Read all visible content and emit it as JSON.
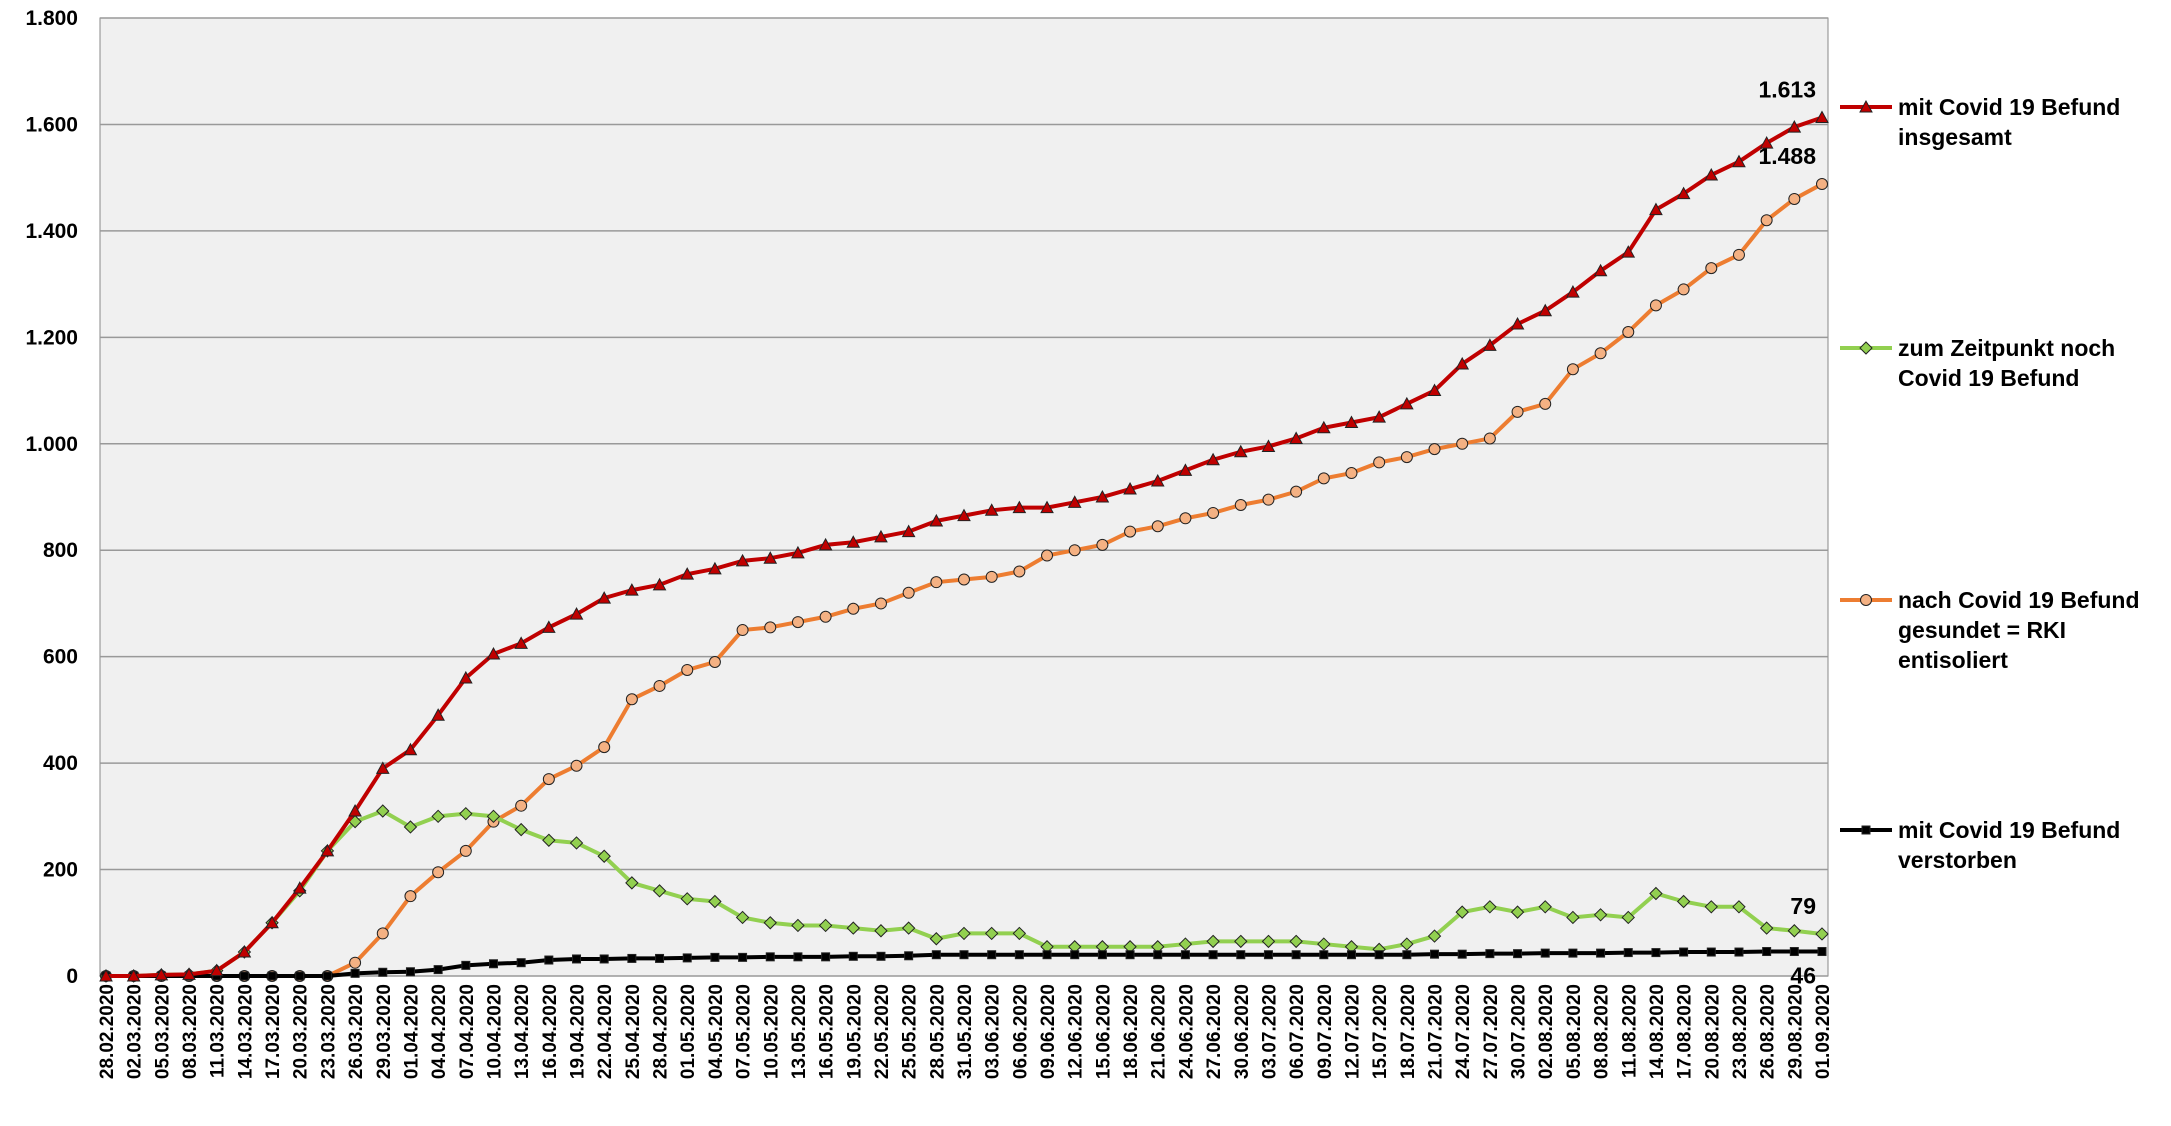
{
  "chart_data": {
    "type": "line",
    "categories": [
      "28.02.2020",
      "02.03.2020",
      "05.03.2020",
      "08.03.2020",
      "11.03.2020",
      "14.03.2020",
      "17.03.2020",
      "20.03.2020",
      "23.03.2020",
      "26.03.2020",
      "29.03.2020",
      "01.04.2020",
      "04.04.2020",
      "07.04.2020",
      "10.04.2020",
      "13.04.2020",
      "16.04.2020",
      "19.04.2020",
      "22.04.2020",
      "25.04.2020",
      "28.04.2020",
      "01.05.2020",
      "04.05.2020",
      "07.05.2020",
      "10.05.2020",
      "13.05.2020",
      "16.05.2020",
      "19.05.2020",
      "22.05.2020",
      "25.05.2020",
      "28.05.2020",
      "31.05.2020",
      "03.06.2020",
      "06.06.2020",
      "09.06.2020",
      "12.06.2020",
      "15.06.2020",
      "18.06.2020",
      "21.06.2020",
      "24.06.2020",
      "27.06.2020",
      "30.06.2020",
      "03.07.2020",
      "06.07.2020",
      "09.07.2020",
      "12.07.2020",
      "15.07.2020",
      "18.07.2020",
      "21.07.2020",
      "24.07.2020",
      "27.07.2020",
      "30.07.2020",
      "02.08.2020",
      "05.08.2020",
      "08.08.2020",
      "11.08.2020",
      "14.08.2020",
      "17.08.2020",
      "20.08.2020",
      "23.08.2020",
      "26.08.2020",
      "29.08.2020",
      "01.09.2020"
    ],
    "series": [
      {
        "name": "mit Covid 19 Befund insgesamt",
        "color": "#c00000",
        "marker": "triangle",
        "marker_fill": "#c00000",
        "label_position": "above",
        "values": [
          0,
          0,
          2,
          3,
          10,
          45,
          100,
          165,
          235,
          310,
          390,
          425,
          490,
          560,
          605,
          625,
          655,
          680,
          710,
          725,
          735,
          755,
          765,
          780,
          785,
          795,
          810,
          815,
          825,
          835,
          855,
          865,
          875,
          880,
          880,
          890,
          900,
          915,
          930,
          950,
          970,
          985,
          995,
          1010,
          1030,
          1040,
          1050,
          1075,
          1100,
          1150,
          1185,
          1225,
          1250,
          1285,
          1325,
          1360,
          1440,
          1470,
          1505,
          1530,
          1565,
          1595,
          1613
        ],
        "value_labels": [
          null,
          null,
          null,
          null,
          null,
          null,
          null,
          null,
          null,
          null,
          null,
          null,
          null,
          null,
          null,
          null,
          null,
          null,
          null,
          null,
          null,
          null,
          null,
          null,
          null,
          null,
          null,
          null,
          null,
          null,
          null,
          null,
          null,
          null,
          null,
          null,
          null,
          null,
          null,
          null,
          null,
          null,
          null,
          null,
          null,
          null,
          null,
          null,
          null,
          null,
          null,
          null,
          null,
          null,
          null,
          null,
          null,
          null,
          null,
          null,
          null,
          null,
          "1.613"
        ]
      },
      {
        "name": "zum Zeitpunkt noch Covid 19 Befund",
        "color": "#92d050",
        "marker": "diamond",
        "marker_fill": "#92d050",
        "label_position": "above",
        "values": [
          0,
          0,
          2,
          3,
          10,
          45,
          100,
          160,
          235,
          290,
          310,
          280,
          300,
          305,
          300,
          275,
          255,
          250,
          225,
          175,
          160,
          145,
          140,
          110,
          100,
          95,
          95,
          90,
          85,
          90,
          70,
          80,
          80,
          80,
          55,
          55,
          55,
          55,
          55,
          60,
          65,
          65,
          65,
          65,
          60,
          55,
          50,
          60,
          75,
          120,
          130,
          120,
          130,
          110,
          115,
          110,
          155,
          140,
          130,
          130,
          90,
          85,
          79
        ],
        "value_labels": [
          null,
          null,
          null,
          null,
          null,
          null,
          null,
          null,
          null,
          null,
          null,
          null,
          null,
          null,
          null,
          null,
          null,
          null,
          null,
          null,
          null,
          null,
          null,
          null,
          null,
          null,
          null,
          null,
          null,
          null,
          null,
          null,
          null,
          null,
          null,
          null,
          null,
          null,
          null,
          null,
          null,
          null,
          null,
          null,
          null,
          null,
          null,
          null,
          null,
          null,
          null,
          null,
          null,
          null,
          null,
          null,
          null,
          null,
          null,
          null,
          null,
          null,
          "79"
        ]
      },
      {
        "name": "nach Covid 19 Befund gesundet = RKI entisoliert",
        "color": "#ed7d31",
        "marker": "circle",
        "marker_fill": "#f4b183",
        "label_position": "above",
        "values": [
          0,
          0,
          0,
          0,
          0,
          0,
          0,
          0,
          0,
          25,
          80,
          150,
          195,
          235,
          290,
          320,
          370,
          395,
          430,
          520,
          545,
          575,
          590,
          650,
          655,
          665,
          675,
          690,
          700,
          720,
          740,
          745,
          750,
          760,
          790,
          800,
          810,
          835,
          845,
          860,
          870,
          885,
          895,
          910,
          935,
          945,
          965,
          975,
          990,
          1000,
          1010,
          1060,
          1075,
          1140,
          1170,
          1210,
          1260,
          1290,
          1330,
          1355,
          1420,
          1460,
          1488
        ],
        "value_labels": [
          null,
          null,
          null,
          null,
          null,
          null,
          null,
          null,
          null,
          null,
          null,
          null,
          null,
          null,
          null,
          null,
          null,
          null,
          null,
          null,
          null,
          null,
          null,
          null,
          null,
          null,
          null,
          null,
          null,
          null,
          null,
          null,
          null,
          null,
          null,
          null,
          null,
          null,
          null,
          null,
          null,
          null,
          null,
          null,
          null,
          null,
          null,
          null,
          null,
          null,
          null,
          null,
          null,
          null,
          null,
          null,
          null,
          null,
          null,
          null,
          null,
          null,
          "1.488"
        ]
      },
      {
        "name": "mit Covid 19 Befund verstorben",
        "color": "#000000",
        "marker": "square",
        "marker_fill": "#000000",
        "label_position": "below",
        "values": [
          0,
          0,
          0,
          0,
          0,
          0,
          0,
          0,
          0,
          5,
          7,
          8,
          12,
          20,
          23,
          25,
          30,
          32,
          32,
          33,
          33,
          34,
          35,
          35,
          36,
          36,
          36,
          37,
          37,
          38,
          40,
          40,
          40,
          40,
          40,
          40,
          40,
          40,
          40,
          40,
          40,
          40,
          40,
          40,
          40,
          40,
          40,
          40,
          41,
          41,
          42,
          42,
          43,
          43,
          43,
          44,
          44,
          45,
          45,
          45,
          46,
          46,
          46
        ],
        "value_labels": [
          null,
          null,
          null,
          null,
          null,
          null,
          null,
          null,
          null,
          null,
          null,
          null,
          null,
          null,
          null,
          null,
          null,
          null,
          null,
          null,
          null,
          null,
          null,
          null,
          null,
          null,
          null,
          null,
          null,
          null,
          null,
          null,
          null,
          null,
          null,
          null,
          null,
          null,
          null,
          null,
          null,
          null,
          null,
          null,
          null,
          null,
          null,
          null,
          null,
          null,
          null,
          null,
          null,
          null,
          null,
          null,
          null,
          null,
          null,
          null,
          null,
          null,
          "46"
        ]
      }
    ],
    "ylim": [
      0,
      1800
    ],
    "yticks": [
      0,
      200,
      400,
      600,
      800,
      {
        "value": 1000,
        "label": "1.000"
      },
      {
        "value": 1200,
        "label": "1.200"
      },
      {
        "value": 1400,
        "label": "1.400"
      },
      {
        "value": 1600,
        "label": "1.600"
      },
      {
        "value": 1800,
        "label": "1.800"
      }
    ],
    "grid": true,
    "legend": "right"
  }
}
